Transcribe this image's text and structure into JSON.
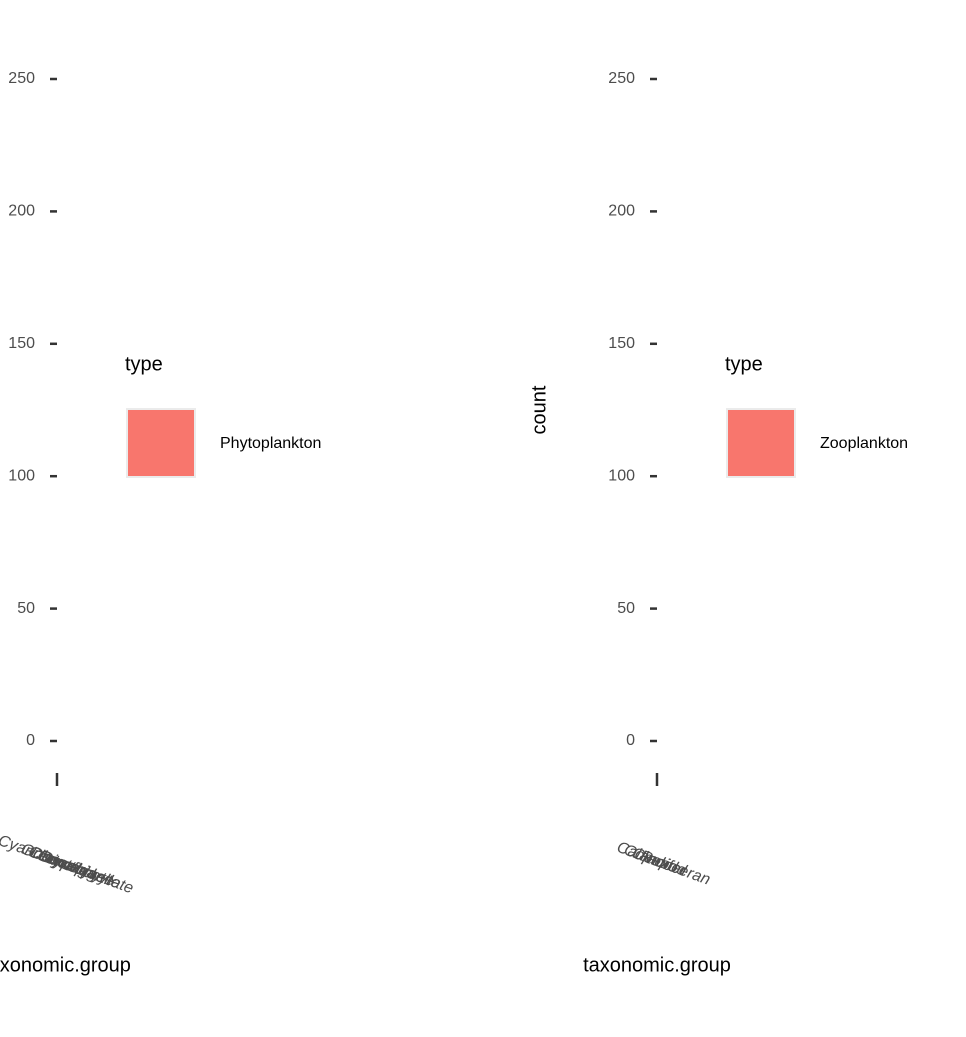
{
  "chart_data": [
    {
      "type": "bar",
      "xlabel": "taxonomic.group",
      "categories": [
        "Cyanobacteria",
        "Diatom",
        "Green algae",
        "Chrysophyte",
        "Cryptophyte",
        "Dinoflagellate"
      ],
      "ylim": [
        0,
        250
      ],
      "yticks": [
        0,
        50,
        100,
        150,
        200,
        250
      ],
      "legend_title": "type",
      "series": [
        {
          "name": "Phytoplankton",
          "color": "#F8766D"
        }
      ]
    },
    {
      "type": "bar",
      "xlabel": "taxonomic.group",
      "ylabel": "count",
      "categories": [
        "Calanoid",
        "Copepod",
        "Rotifer",
        "Cladoceran"
      ],
      "ylim": [
        0,
        250
      ],
      "yticks": [
        0,
        50,
        100,
        150,
        200,
        250
      ],
      "legend_title": "type",
      "series": [
        {
          "name": "Zooplankton",
          "color": "#F8766D"
        }
      ]
    }
  ]
}
